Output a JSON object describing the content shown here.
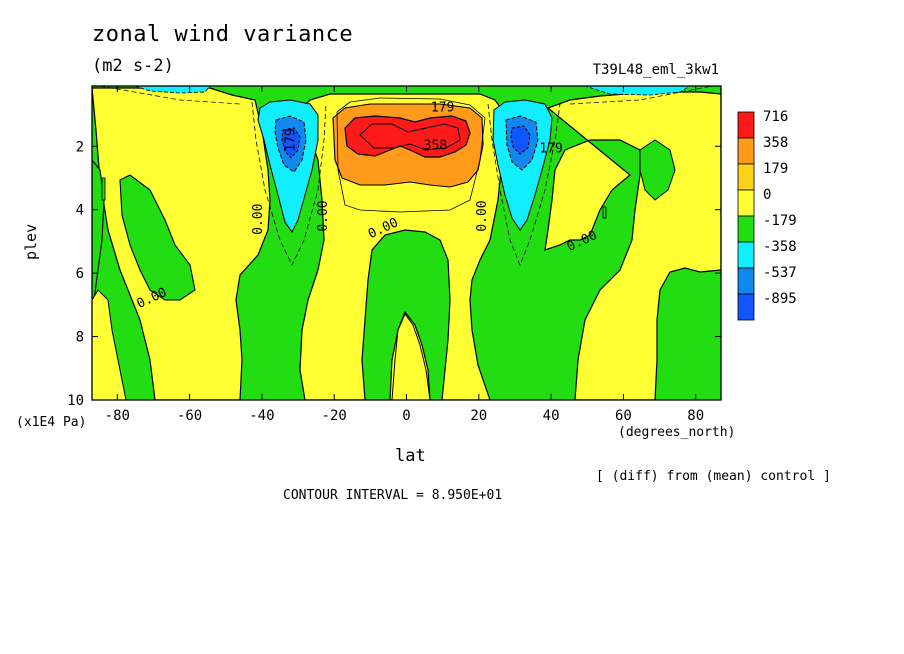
{
  "chart_data": {
    "type": "contour",
    "title": "zonal wind variance",
    "units": "(m2 s-2)",
    "run_label": "T39L48_eml_3kw1",
    "xlabel": "lat",
    "xunits": "(degrees_north)",
    "ylabel": "plev",
    "yunits": "(x1E4 Pa)",
    "note": "[ (diff) from (mean) control ]",
    "contour_interval_text": "CONTOUR INTERVAL = 8.950E+01",
    "xlim": [
      -87,
      87
    ],
    "ylim": [
      10,
      0.1
    ],
    "xticks": [
      -80,
      -60,
      -40,
      -20,
      0,
      20,
      40,
      60,
      80
    ],
    "yticks": [
      2,
      4,
      6,
      8,
      10
    ],
    "colorbar": {
      "levels": [
        "716",
        "358",
        "179",
        "0",
        "-179",
        "-358",
        "-537",
        "-895"
      ],
      "colors": [
        "#ff1a1a",
        "#ff9a1a",
        "#ffd21a",
        "#ffff33",
        "#22dd11",
        "#11eeff",
        "#1188ee",
        "#1155ff"
      ]
    },
    "contour_labels": [
      {
        "text": "179",
        "lat": 10,
        "plev": 0.9
      },
      {
        "text": "358",
        "lat": 8,
        "plev": 2.1
      },
      {
        "text": "179",
        "lat": -31,
        "plev": 1.8
      },
      {
        "text": "179",
        "lat": 40,
        "plev": 2.2
      },
      {
        "text": "0.00",
        "lat": -40,
        "plev": 4.3
      },
      {
        "text": "0.00",
        "lat": -22,
        "plev": 4.2
      },
      {
        "text": "0.00",
        "lat": -6,
        "plev": 4.7
      },
      {
        "text": "0.00",
        "lat": 22,
        "plev": 4.2
      },
      {
        "text": "0.00",
        "lat": 49,
        "plev": 5.1
      },
      {
        "text": "0.00",
        "lat": -70,
        "plev": 6.9
      }
    ]
  }
}
